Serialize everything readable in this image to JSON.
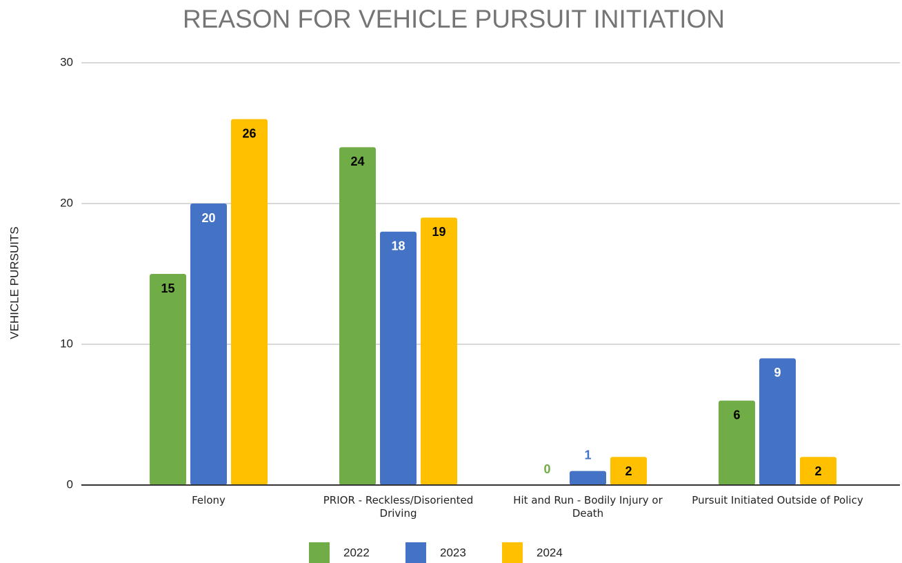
{
  "chart_data": {
    "type": "bar",
    "title": "REASON FOR VEHICLE PURSUIT INITIATION",
    "y_label": "VEHICLE PURSUITS",
    "categories": [
      "Felony",
      "PRIOR - Reckless/Disoriented Driving",
      "Hit and Run - Bodily Injury or Death",
      "Pursuit Initiated Outside of Policy"
    ],
    "series": [
      {
        "name": "2022",
        "color": "#70ad47",
        "label_color": "#000000",
        "values": [
          15,
          24,
          0,
          6
        ]
      },
      {
        "name": "2023",
        "color": "#4472c4",
        "label_color": "#ffffff",
        "values": [
          20,
          18,
          1,
          9
        ]
      },
      {
        "name": "2024",
        "color": "#ffc000",
        "label_color": "#000000",
        "values": [
          26,
          19,
          2,
          2
        ]
      }
    ],
    "ylim": [
      0,
      30
    ],
    "yticks": [
      0,
      10,
      20,
      30
    ],
    "grid": true,
    "legend": "bottom"
  }
}
